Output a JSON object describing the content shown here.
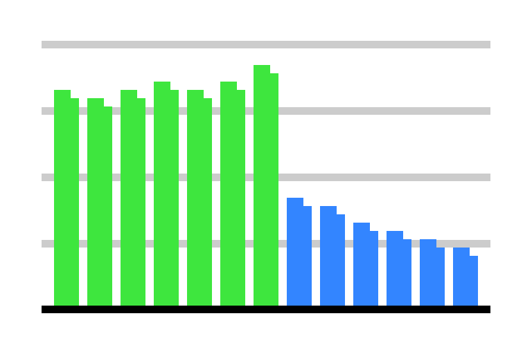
{
  "chart_data": {
    "type": "bar",
    "categories": [
      null,
      null,
      null,
      null,
      null,
      null,
      null,
      null,
      null,
      null,
      null,
      null,
      null
    ],
    "series": [
      {
        "colors": [
          "#3ee63e",
          "#3ee63e",
          "#3ee63e",
          "#3ee63e",
          "#3ee63e",
          "#3ee63e",
          "#3ee63e",
          "#3385ff",
          "#3385ff",
          "#3385ff",
          "#3385ff",
          "#3385ff",
          "#3385ff"
        ],
        "values": [
          26,
          25,
          26,
          27,
          26,
          27,
          29,
          13,
          12,
          10,
          9,
          8,
          7
        ]
      },
      {
        "colors": [
          "#3ee63e",
          "#3ee63e",
          "#3ee63e",
          "#3ee63e",
          "#3ee63e",
          "#3ee63e",
          "#3ee63e",
          "#3385ff",
          "#3385ff",
          "#3385ff",
          "#3385ff",
          "#3385ff",
          "#3385ff"
        ],
        "values": [
          25,
          24,
          25,
          26,
          25,
          26,
          28,
          12,
          11,
          9,
          8,
          7,
          6
        ]
      }
    ],
    "ylim": [
      0,
      32
    ],
    "yticks": [
      8,
      16,
      24,
      32
    ],
    "grid": true
  }
}
